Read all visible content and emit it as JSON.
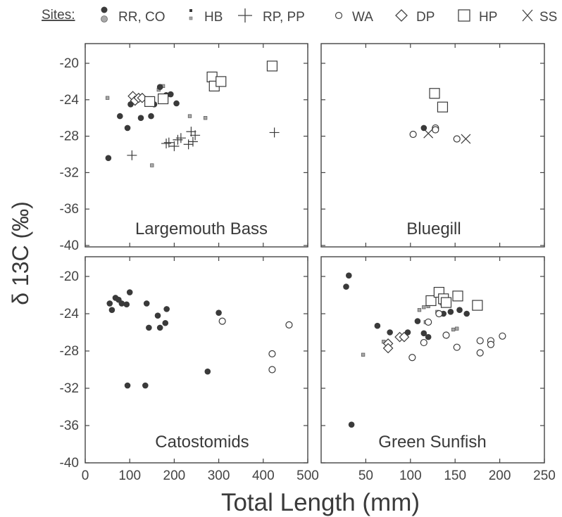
{
  "legend": {
    "title": "Sites:",
    "entries": [
      {
        "label": "RR, CO",
        "markers": [
          "filled-circle",
          "gray-filled-circle"
        ]
      },
      {
        "label": "HB",
        "markers": [
          "small-filled-square",
          "small-gray-square"
        ]
      },
      {
        "label": "RP, PP",
        "markers": [
          "plus"
        ]
      },
      {
        "label": "WA",
        "markers": [
          "open-circle"
        ]
      },
      {
        "label": "DP",
        "markers": [
          "open-diamond"
        ]
      },
      {
        "label": "HP",
        "markers": [
          "open-square"
        ]
      },
      {
        "label": "SS",
        "markers": [
          "x-cross"
        ]
      }
    ]
  },
  "axes": {
    "xlabel": "Total Length (mm)",
    "ylabel": "δ 13C (‰)",
    "y_ticks": [
      "-20",
      "-24",
      "-28",
      "-32",
      "-36",
      "-40"
    ],
    "x_ticks_left": [
      "0",
      "100",
      "200",
      "300",
      "400",
      "500"
    ],
    "x_ticks_right": [
      "50",
      "100",
      "150",
      "200",
      "250"
    ]
  },
  "colors": {
    "dark": "#3a3a3a",
    "gray_fill": "#a8a8a8",
    "frame": "#444444"
  },
  "chart_data": [
    {
      "type": "scatter",
      "panel": "top-left",
      "title": "Largemouth Bass",
      "xlim": [
        0,
        500
      ],
      "ylim": [
        -40,
        -18
      ],
      "series": [
        {
          "name": "RR",
          "marker": "filled-circle",
          "points": [
            [
              52,
              -30.4
            ],
            [
              78,
              -25.8
            ],
            [
              95,
              -27.1
            ],
            [
              102,
              -24.5
            ],
            [
              125,
              -26
            ],
            [
              148,
              -25.8
            ],
            [
              155,
              -24.5
            ],
            [
              168,
              -22.6
            ],
            [
              175,
              -23.7
            ],
            [
              182,
              -23.5
            ],
            [
              192,
              -23.4
            ],
            [
              205,
              -24.4
            ]
          ]
        },
        {
          "name": "CO",
          "marker": "gray-filled-circle",
          "points": []
        },
        {
          "name": "HB",
          "marker": "small-square",
          "points": [
            [
              50,
              -23.8
            ],
            [
              150,
              -31.2
            ],
            [
              165,
              -22.9
            ],
            [
              175,
              -22.5
            ],
            [
              235,
              -25.8
            ],
            [
              270,
              -26
            ]
          ]
        },
        {
          "name": "RP, PP",
          "marker": "plus",
          "points": [
            [
              105,
              -30.1
            ],
            [
              182,
              -28.8
            ],
            [
              188,
              -28.7
            ],
            [
              200,
              -29.1
            ],
            [
              208,
              -28.4
            ],
            [
              215,
              -28.2
            ],
            [
              232,
              -28.9
            ],
            [
              238,
              -27.5
            ],
            [
              242,
              -28.6
            ],
            [
              247,
              -27.9
            ],
            [
              425,
              -27.6
            ]
          ]
        },
        {
          "name": "DP",
          "marker": "open-diamond",
          "points": [
            [
              107,
              -23.6
            ],
            [
              112,
              -24.1
            ],
            [
              120,
              -23.8
            ],
            [
              128,
              -23.8
            ]
          ]
        },
        {
          "name": "HP",
          "marker": "open-square",
          "points": [
            [
              145,
              -24.2
            ],
            [
              175,
              -23.9
            ],
            [
              285,
              -21.5
            ],
            [
              290,
              -22.5
            ],
            [
              305,
              -22
            ],
            [
              420,
              -20.3
            ]
          ]
        }
      ]
    },
    {
      "type": "scatter",
      "panel": "top-right",
      "title": "Bluegill",
      "xlim": [
        0,
        250
      ],
      "ylim": [
        -40,
        -18
      ],
      "series": [
        {
          "name": "RR",
          "marker": "filled-circle",
          "points": [
            [
              115,
              -27.1
            ]
          ]
        },
        {
          "name": "WA",
          "marker": "open-circle",
          "points": [
            [
              103,
              -27.8
            ],
            [
              128,
              -27.1
            ],
            [
              128,
              -27.3
            ],
            [
              152,
              -28.3
            ]
          ]
        },
        {
          "name": "HP",
          "marker": "open-square",
          "points": [
            [
              127,
              -23.3
            ],
            [
              136,
              -24.8
            ]
          ]
        },
        {
          "name": "SS",
          "marker": "x-cross",
          "points": [
            [
              120,
              -27.7
            ],
            [
              162,
              -28.3
            ]
          ]
        }
      ]
    },
    {
      "type": "scatter",
      "panel": "bottom-left",
      "title": "Catostomids",
      "xlim": [
        0,
        500
      ],
      "ylim": [
        -40,
        -18
      ],
      "series": [
        {
          "name": "RR",
          "marker": "filled-circle",
          "points": [
            [
              55,
              -22.9
            ],
            [
              60,
              -23.6
            ],
            [
              68,
              -22.3
            ],
            [
              75,
              -22.5
            ],
            [
              82,
              -22.9
            ],
            [
              93,
              -23
            ],
            [
              100,
              -21.7
            ],
            [
              95,
              -31.7
            ],
            [
              138,
              -22.9
            ],
            [
              143,
              -25.5
            ],
            [
              163,
              -24.2
            ],
            [
              168,
              -25.5
            ],
            [
              180,
              -25
            ],
            [
              183,
              -23.5
            ],
            [
              135,
              -31.7
            ],
            [
              275,
              -30.2
            ],
            [
              300,
              -23.9
            ]
          ]
        },
        {
          "name": "WA",
          "marker": "open-circle",
          "points": [
            [
              308,
              -24.8
            ],
            [
              420,
              -28.3
            ],
            [
              420,
              -30
            ],
            [
              458,
              -25.2
            ]
          ]
        }
      ]
    },
    {
      "type": "scatter",
      "panel": "bottom-right",
      "title": "Green Sunfish",
      "xlim": [
        0,
        250
      ],
      "ylim": [
        -40,
        -18
      ],
      "series": [
        {
          "name": "RR",
          "marker": "filled-circle",
          "points": [
            [
              28,
              -21.1
            ],
            [
              31,
              -19.9
            ],
            [
              34,
              -35.9
            ],
            [
              63,
              -25.3
            ],
            [
              77,
              -26
            ],
            [
              97,
              -26
            ],
            [
              108,
              -24.8
            ],
            [
              115,
              -26.1
            ],
            [
              120,
              -26.5
            ],
            [
              137,
              -24
            ],
            [
              145,
              -23.8
            ],
            [
              155,
              -23.6
            ],
            [
              163,
              -24
            ]
          ]
        },
        {
          "name": "CO",
          "marker": "gray-filled-circle",
          "points": []
        },
        {
          "name": "HB",
          "marker": "small-square",
          "points": [
            [
              47,
              -28.4
            ],
            [
              70,
              -27
            ],
            [
              110,
              -23.6
            ],
            [
              115,
              -23.3
            ],
            [
              120,
              -23.2
            ],
            [
              130,
              -23.8
            ],
            [
              135,
              -22.9
            ],
            [
              148,
              -25.7
            ],
            [
              152,
              -25.6
            ],
            [
              117,
              -24.9
            ]
          ]
        },
        {
          "name": "WA",
          "marker": "open-circle",
          "points": [
            [
              102,
              -28.7
            ],
            [
              115,
              -27.1
            ],
            [
              120,
              -24.9
            ],
            [
              132,
              -24
            ],
            [
              140,
              -26.3
            ],
            [
              152,
              -27.6
            ],
            [
              178,
              -26.9
            ],
            [
              178,
              -28.2
            ],
            [
              190,
              -26.9
            ],
            [
              190,
              -27.3
            ],
            [
              203,
              -26.4
            ]
          ]
        },
        {
          "name": "DP",
          "marker": "open-diamond",
          "points": [
            [
              75,
              -27.2
            ],
            [
              75,
              -27.7
            ],
            [
              88,
              -26.5
            ],
            [
              93,
              -26.5
            ]
          ]
        },
        {
          "name": "HP",
          "marker": "open-square",
          "points": [
            [
              123,
              -22.6
            ],
            [
              132,
              -21.7
            ],
            [
              137,
              -22.4
            ],
            [
              140,
              -22.8
            ],
            [
              153,
              -22.1
            ],
            [
              175,
              -23.1
            ]
          ]
        }
      ]
    }
  ]
}
